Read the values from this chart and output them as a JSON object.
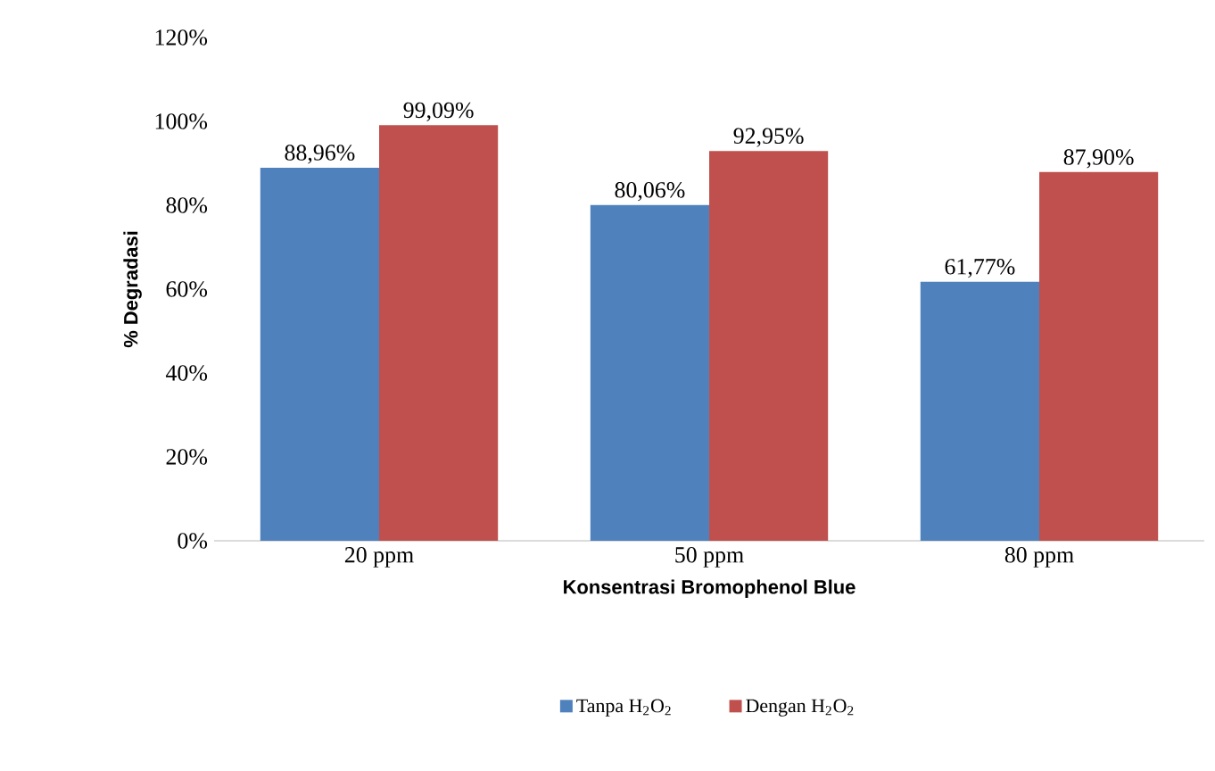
{
  "chart_data": {
    "type": "bar",
    "xlabel": "Konsentrasi Bromophenol Blue",
    "ylabel": "% Degradasi",
    "categories": [
      "20 ppm",
      "50 ppm",
      "80 ppm"
    ],
    "series": [
      {
        "name": "Tanpa H$_{2}$O$_{2}$",
        "color": "#4f81bd",
        "values": [
          88.96,
          80.06,
          61.77
        ],
        "value_labels": [
          "88,96%",
          "80,06%",
          "61,77%"
        ]
      },
      {
        "name": "Dengan H$_{2}$O$_{2}$",
        "color": "#c0504d",
        "values": [
          99.09,
          92.95,
          87.9
        ],
        "value_labels": [
          "99,09%",
          "92,95%",
          "87,90%"
        ]
      }
    ],
    "ylim": [
      0,
      120
    ],
    "yticks": [
      {
        "value": 0,
        "label": "0%"
      },
      {
        "value": 20,
        "label": "20%"
      },
      {
        "value": 40,
        "label": "40%"
      },
      {
        "value": 60,
        "label": "60%"
      },
      {
        "value": 80,
        "label": "80%"
      },
      {
        "value": 100,
        "label": "100%"
      },
      {
        "value": 120,
        "label": "120%"
      }
    ],
    "legend": "bottom"
  }
}
